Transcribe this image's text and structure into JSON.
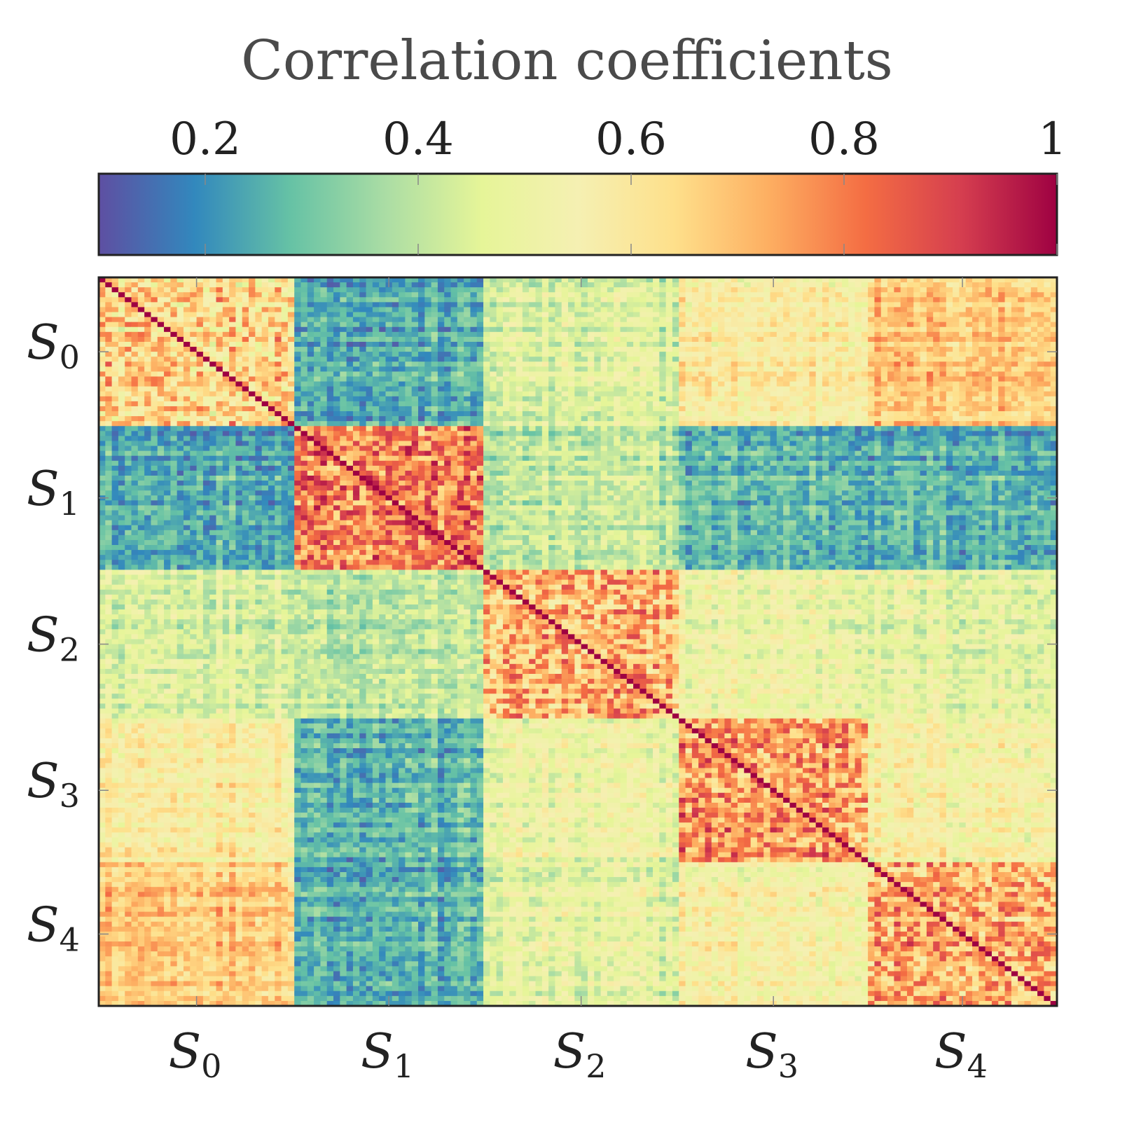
{
  "chart_data": {
    "type": "heatmap",
    "title": "Correlation coefficients",
    "colormap": "Spectral_r",
    "colorbar": {
      "position": "top",
      "range": [
        0.1,
        1.0
      ],
      "ticks": [
        0.2,
        0.4,
        0.6,
        0.8,
        1.0
      ],
      "tick_labels": [
        "0.2",
        "0.4",
        "0.6",
        "0.8",
        "1"
      ]
    },
    "groups": [
      {
        "symbol": "S",
        "sub": "0"
      },
      {
        "symbol": "S",
        "sub": "1"
      },
      {
        "symbol": "S",
        "sub": "2"
      },
      {
        "symbol": "S",
        "sub": "3"
      },
      {
        "symbol": "S",
        "sub": "4"
      }
    ],
    "group_sizes": [
      30,
      29,
      30,
      29,
      29
    ],
    "block_mean_correlation": [
      [
        0.65,
        0.25,
        0.45,
        0.58,
        0.68
      ],
      [
        0.25,
        0.8,
        0.4,
        0.27,
        0.26
      ],
      [
        0.45,
        0.4,
        0.7,
        0.5,
        0.47
      ],
      [
        0.58,
        0.27,
        0.5,
        0.75,
        0.55
      ],
      [
        0.68,
        0.26,
        0.47,
        0.55,
        0.72
      ]
    ],
    "diagonal_value": 1.0,
    "xlabel": "",
    "ylabel": ""
  }
}
